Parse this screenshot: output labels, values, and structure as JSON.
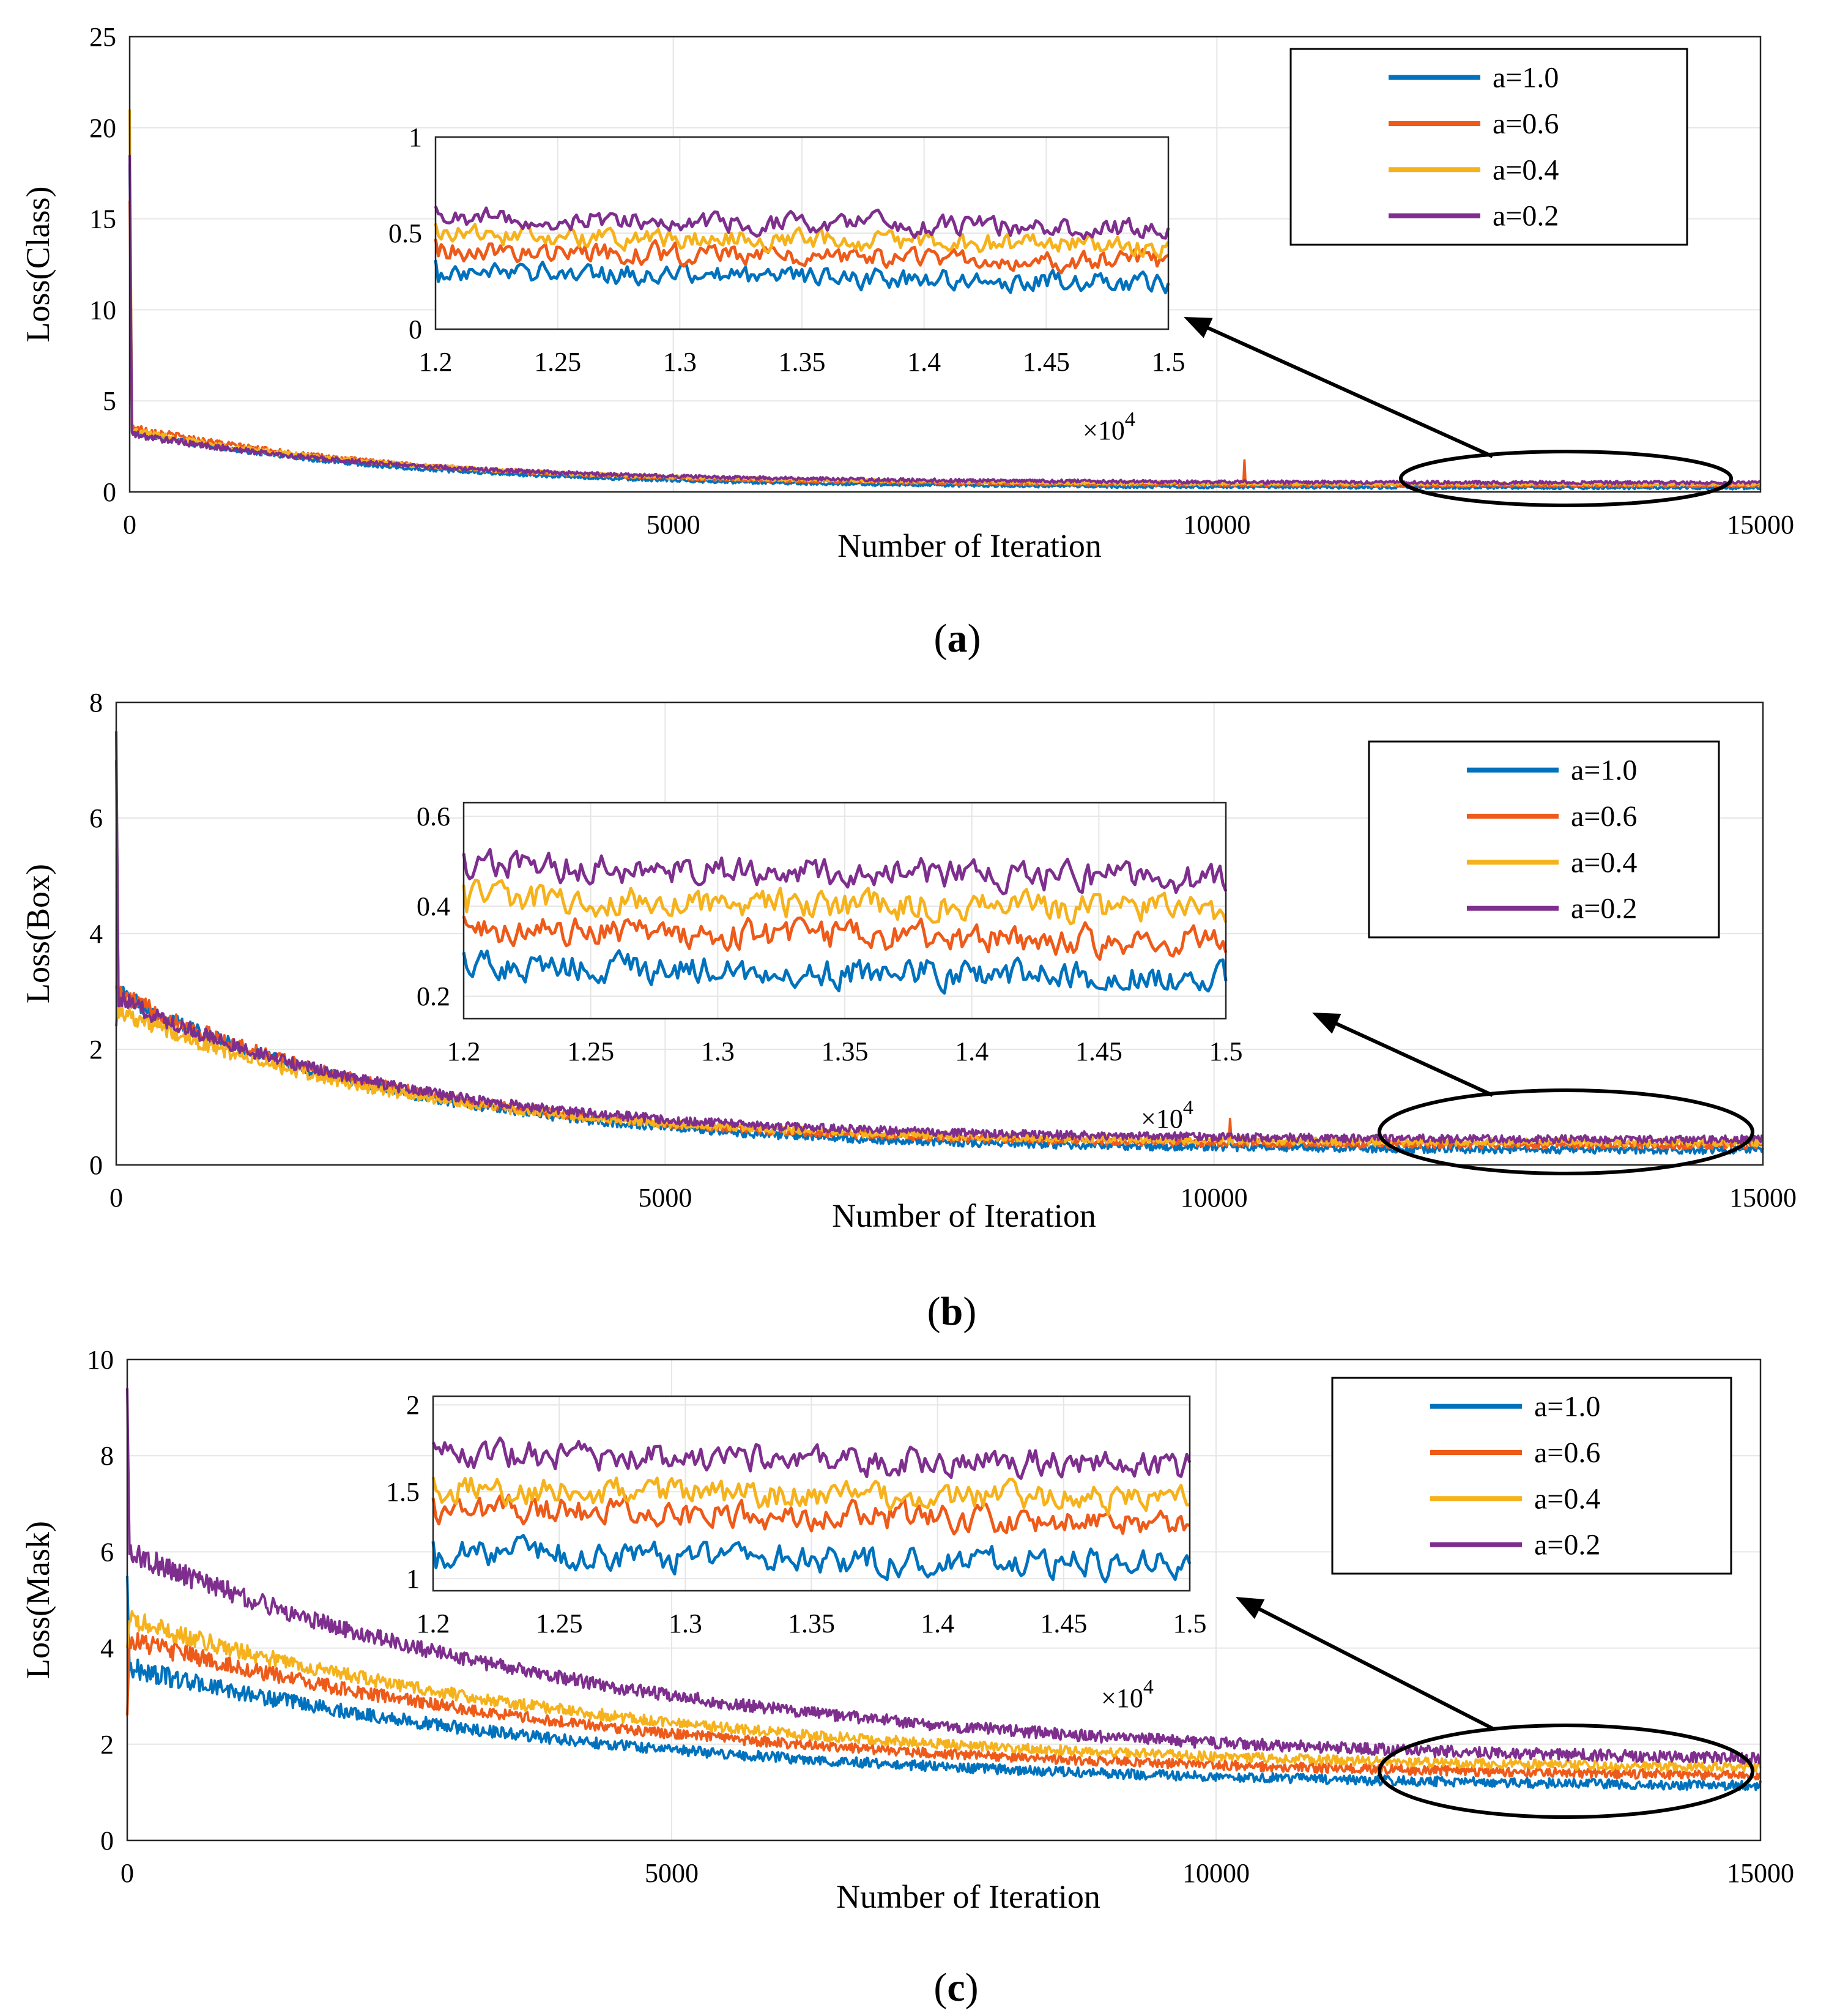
{
  "figure": {
    "colors": {
      "a=1.0": "#0072BD",
      "a=0.6": "#EE5A19",
      "a=0.4": "#F5B21C",
      "a=0.2": "#7E2F8E",
      "grid": "#e6e6e6",
      "axis": "#262626"
    }
  },
  "chart_data": [
    {
      "id": "a",
      "type": "line",
      "caption_letter": "a",
      "xlabel": "Number of Iteration",
      "ylabel": "Loss(Class)",
      "xlim": [
        0,
        15000
      ],
      "ylim": [
        0,
        25
      ],
      "xticks": [
        0,
        5000,
        10000,
        15000
      ],
      "xtick_labels": [
        "0",
        "5000",
        "10000",
        "15000"
      ],
      "yticks": [
        0,
        5,
        10,
        15,
        20,
        25
      ],
      "ytick_labels": [
        "0",
        "5",
        "10",
        "15",
        "20",
        "25"
      ],
      "grid": true,
      "legend": [
        "a=1.0",
        "a=0.6",
        "a=0.4",
        "a=0.2"
      ],
      "legend_position": "top-right",
      "series": [
        {
          "name": "a=1.0",
          "start": 18.0,
          "init": 3.3,
          "final": 0.22,
          "tau": 2500,
          "noise": 0.08,
          "spike_at": null
        },
        {
          "name": "a=0.6",
          "start": 16.0,
          "init": 3.6,
          "final": 0.34,
          "tau": 2500,
          "noise": 0.09,
          "spike_at": 10250
        },
        {
          "name": "a=0.4",
          "start": 21.0,
          "init": 3.4,
          "final": 0.42,
          "tau": 2500,
          "noise": 0.09,
          "spike_at": null
        },
        {
          "name": "a=0.2",
          "start": 18.5,
          "init": 3.2,
          "final": 0.5,
          "tau": 2500,
          "noise": 0.09,
          "spike_at": null
        }
      ],
      "inset": {
        "xlim": [
          12000,
          15000
        ],
        "ylim": [
          0,
          1
        ],
        "xtick_labels": [
          "1.2",
          "1.25",
          "1.3",
          "1.35",
          "1.4",
          "1.45",
          "1.5"
        ],
        "ytick_labels": [
          "0",
          "0.5",
          "1"
        ],
        "yticks": [
          0,
          0.5,
          1
        ],
        "multiplier": "×10",
        "multiplier_exp": "4",
        "levels": {
          "a=1.0": 0.24,
          "a=0.6": 0.35,
          "a=0.4": 0.43,
          "a=0.2": 0.52
        },
        "noise": 0.045
      }
    },
    {
      "id": "b",
      "type": "line",
      "caption_letter": "b",
      "xlabel": "Number of Iteration",
      "ylabel": "Loss(Box)",
      "xlim": [
        0,
        15000
      ],
      "ylim": [
        0,
        8
      ],
      "xticks": [
        0,
        5000,
        10000,
        15000
      ],
      "xtick_labels": [
        "0",
        "5000",
        "10000",
        "15000"
      ],
      "yticks": [
        0,
        2,
        4,
        6,
        8
      ],
      "ytick_labels": [
        "0",
        "2",
        "4",
        "6",
        "8"
      ],
      "grid": true,
      "legend": [
        "a=1.0",
        "a=0.6",
        "a=0.4",
        "a=0.2"
      ],
      "legend_position": "top-right",
      "series": [
        {
          "name": "a=1.0",
          "start": 7.0,
          "init": 3.0,
          "final": 0.25,
          "tau": 2600,
          "noise": 0.07,
          "spike_at": null
        },
        {
          "name": "a=0.6",
          "start": 2.4,
          "init": 3.0,
          "final": 0.33,
          "tau": 2600,
          "noise": 0.07,
          "spike_at": 10150
        },
        {
          "name": "a=0.4",
          "start": 3.1,
          "init": 2.7,
          "final": 0.38,
          "tau": 2600,
          "noise": 0.07,
          "spike_at": null
        },
        {
          "name": "a=0.2",
          "start": 7.5,
          "init": 2.9,
          "final": 0.43,
          "tau": 2600,
          "noise": 0.07,
          "spike_at": null
        }
      ],
      "inset": {
        "xlim": [
          12000,
          15000
        ],
        "ylim": [
          0.15,
          0.63
        ],
        "xtick_labels": [
          "1.2",
          "1.25",
          "1.3",
          "1.35",
          "1.4",
          "1.45",
          "1.5"
        ],
        "ytick_labels": [
          "0.2",
          "0.4",
          "0.6"
        ],
        "yticks": [
          0.2,
          0.4,
          0.6
        ],
        "multiplier": "×10",
        "multiplier_exp": "4",
        "levels": {
          "a=1.0": 0.24,
          "a=0.6": 0.32,
          "a=0.4": 0.39,
          "a=0.2": 0.46
        },
        "noise": 0.028
      }
    },
    {
      "id": "c",
      "type": "line",
      "caption_letter": "c",
      "xlabel": "Number of Iteration",
      "ylabel": "Loss(Mask)",
      "xlim": [
        0,
        15000
      ],
      "ylim": [
        0,
        10
      ],
      "xticks": [
        0,
        5000,
        10000,
        15000
      ],
      "xtick_labels": [
        "0",
        "5000",
        "10000",
        "15000"
      ],
      "yticks": [
        0,
        2,
        4,
        6,
        8,
        10
      ],
      "ytick_labels": [
        "0",
        "2",
        "4",
        "6",
        "8",
        "10"
      ],
      "grid": true,
      "legend": [
        "a=1.0",
        "a=0.6",
        "a=0.4",
        "a=0.2"
      ],
      "legend_position": "top-right",
      "series": [
        {
          "name": "a=1.0",
          "start": 5.5,
          "init": 3.6,
          "final": 1.05,
          "tau": 4500,
          "noise": 0.1,
          "spike_at": null
        },
        {
          "name": "a=0.6",
          "start": 2.6,
          "init": 4.2,
          "final": 1.25,
          "tau": 4500,
          "noise": 0.1,
          "spike_at": null
        },
        {
          "name": "a=0.4",
          "start": 4.0,
          "init": 4.6,
          "final": 1.4,
          "tau": 4500,
          "noise": 0.1,
          "spike_at": null
        },
        {
          "name": "a=0.2",
          "start": 9.4,
          "init": 6.0,
          "final": 1.55,
          "tau": 4500,
          "noise": 0.12,
          "spike_at": null
        }
      ],
      "inset": {
        "xlim": [
          12000,
          15000
        ],
        "ylim": [
          0.93,
          2.05
        ],
        "xtick_labels": [
          "1.2",
          "1.25",
          "1.3",
          "1.35",
          "1.4",
          "1.45",
          "1.5"
        ],
        "ytick_labels": [
          "1",
          "1.5",
          "2"
        ],
        "yticks": [
          1,
          1.5,
          2
        ],
        "multiplier": "×10",
        "multiplier_exp": "4",
        "levels": {
          "a=1.0": 1.08,
          "a=0.6": 1.33,
          "a=0.4": 1.45,
          "a=0.2": 1.65
        },
        "noise": 0.07
      }
    }
  ]
}
